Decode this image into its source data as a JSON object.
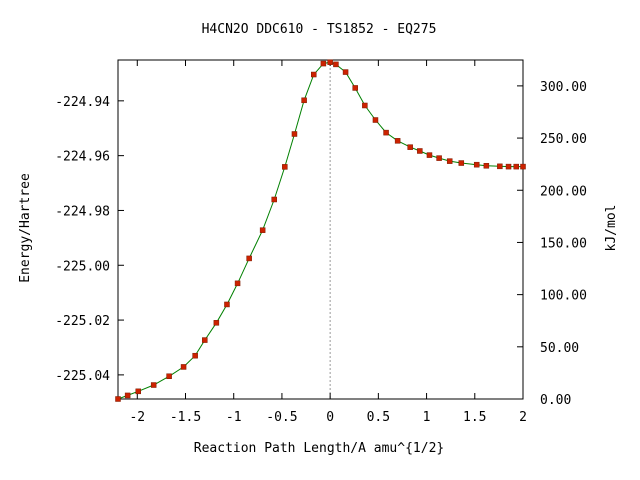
{
  "chart_data": {
    "type": "line",
    "title": "H4CN2O   DDC610 - TS1852 - EQ275",
    "xlabel": "Reaction Path Length/A amu^{1/2}",
    "ylabel": "Energy/Hartree",
    "y2label": "kJ/mol",
    "xlim": [
      -2.2,
      2.0
    ],
    "ylim": [
      -225.0488,
      -224.9251
    ],
    "y2lim": [
      0,
      324.8
    ],
    "x_ticks": [
      -2,
      -1.5,
      -1,
      -0.5,
      0,
      0.5,
      1,
      1.5,
      2
    ],
    "x_tick_labels": [
      "-2",
      "-1.5",
      "-1",
      "-0.5",
      "0",
      "0.5",
      "1",
      "1.5",
      "2"
    ],
    "y_ticks": [
      -224.94,
      -224.96,
      -224.98,
      -225.0,
      -225.02,
      -225.04
    ],
    "y_tick_labels": [
      "-224.94",
      "-224.96",
      "-224.98",
      "-225.00",
      "-225.02",
      "-225.04"
    ],
    "y2_ticks": [
      0,
      50,
      100,
      150,
      200,
      250,
      300
    ],
    "y2_tick_labels": [
      "0.00",
      "50.00",
      "100.00",
      "150.00",
      "200.00",
      "250.00",
      "300.00"
    ],
    "ts_x": 0,
    "grid": false,
    "legend": "none",
    "colors": {
      "curve": "#008000",
      "points": "#cc2200",
      "ts_line": "#999999"
    },
    "series": [
      {
        "x": [
          -2.2,
          -2.1,
          -1.99,
          -1.83,
          -1.67,
          -1.52,
          -1.4,
          -1.3,
          -1.18,
          -1.07,
          -0.96,
          -0.84,
          -0.7,
          -0.58,
          -0.47,
          -0.37,
          -0.27,
          -0.17,
          -0.07,
          0.0,
          0.06,
          0.16,
          0.26,
          0.36,
          0.47,
          0.58,
          0.7,
          0.83,
          0.93,
          1.03,
          1.13,
          1.24,
          1.36,
          1.52,
          1.62,
          1.76,
          1.85,
          1.93,
          2.0
        ],
        "y": [
          -225.0488,
          -225.0475,
          -225.046,
          -225.0437,
          -225.0405,
          -225.0371,
          -225.033,
          -225.0273,
          -225.021,
          -225.0143,
          -225.0066,
          -224.9975,
          -224.9872,
          -224.976,
          -224.9641,
          -224.9521,
          -224.9398,
          -224.9304,
          -224.9264,
          -224.9259,
          -224.9267,
          -224.9295,
          -224.9353,
          -224.9417,
          -224.947,
          -224.9516,
          -224.9546,
          -224.9569,
          -224.9583,
          -224.9598,
          -224.9609,
          -224.962,
          -224.9627,
          -224.9633,
          -224.9637,
          -224.9639,
          -224.964,
          -224.964,
          -224.964
        ]
      }
    ]
  }
}
